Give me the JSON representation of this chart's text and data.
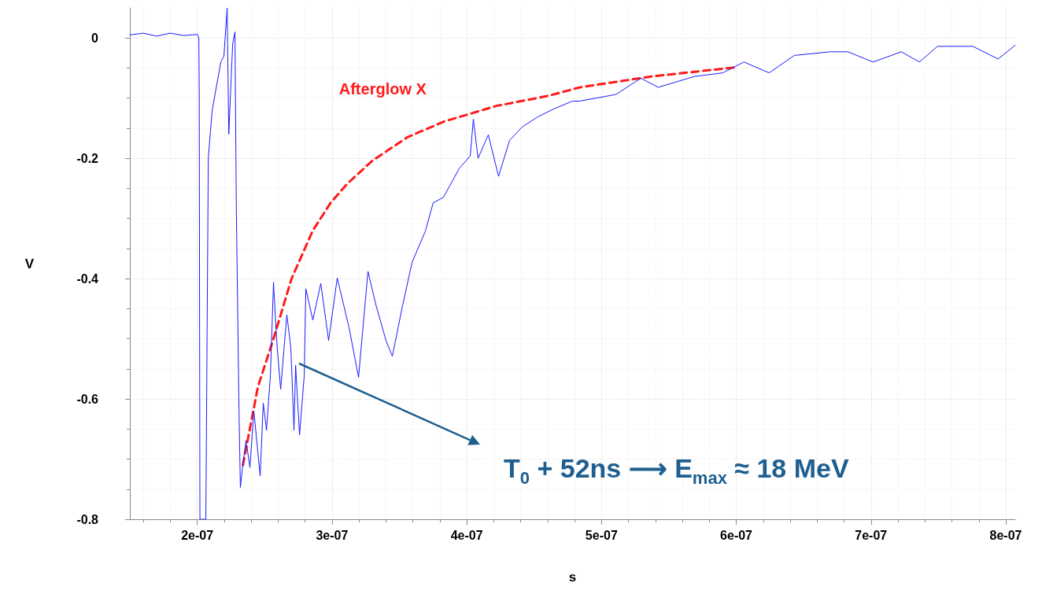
{
  "chart_data": {
    "type": "line",
    "xlabel": "s",
    "ylabel": "V",
    "xlim": [
      1.5e-07,
      8.07e-07
    ],
    "ylim": [
      -0.8,
      0.05
    ],
    "xticks": [
      {
        "value": 2e-07,
        "label": "2e-07"
      },
      {
        "value": 3e-07,
        "label": "3e-07"
      },
      {
        "value": 4e-07,
        "label": "4e-07"
      },
      {
        "value": 5e-07,
        "label": "5e-07"
      },
      {
        "value": 6e-07,
        "label": "6e-07"
      },
      {
        "value": 7e-07,
        "label": "7e-07"
      },
      {
        "value": 8e-07,
        "label": "8e-07"
      }
    ],
    "yticks": [
      0,
      -0.2,
      -0.4,
      -0.6,
      -0.8
    ],
    "grid": true,
    "marker": "none",
    "legend": false,
    "annotations": [
      "T$_{0}$ + 52ns ⟶ E$_{max}$ ≈ 18 MeV"
    ],
    "series": [
      {
        "color": "#1a1aff",
        "line_style": "solid",
        "x": [
          1.5e-07,
          1.6e-07,
          1.7e-07,
          1.8e-07,
          1.9e-07,
          2e-07,
          2.012e-07,
          2.015e-07,
          2.02e-07,
          2.064e-07,
          2.082e-07,
          2.111e-07,
          2.175e-07,
          2.198e-07,
          2.222e-07,
          2.234e-07,
          2.263e-07,
          2.28e-07,
          2.29e-07,
          2.31e-07,
          2.32e-07,
          2.339e-07,
          2.362e-07,
          2.391e-07,
          2.42e-07,
          2.467e-07,
          2.49e-07,
          2.514e-07,
          2.543e-07,
          2.566e-07,
          2.59e-07,
          2.619e-07,
          2.665e-07,
          2.695e-07,
          2.718e-07,
          2.73e-07,
          2.759e-07,
          2.794e-07,
          2.806e-07,
          2.858e-07,
          2.917e-07,
          2.975e-07,
          3.039e-07,
          3.127e-07,
          3.197e-07,
          3.267e-07,
          3.325e-07,
          3.401e-07,
          3.448e-07,
          3.518e-07,
          3.594e-07,
          3.693e-07,
          3.751e-07,
          3.827e-07,
          3.944e-07,
          4.026e-07,
          4.049e-07,
          4.084e-07,
          4.16e-07,
          4.236e-07,
          4.318e-07,
          4.411e-07,
          4.528e-07,
          4.645e-07,
          4.785e-07,
          4.837e-07,
          5.106e-07,
          5.292e-07,
          5.421e-07,
          5.689e-07,
          5.9e-07,
          6.057e-07,
          6.244e-07,
          6.431e-07,
          6.699e-07,
          6.828e-07,
          7.015e-07,
          7.225e-07,
          7.359e-07,
          7.493e-07,
          7.756e-07,
          7.943e-07,
          8.07e-07
        ],
        "values": [
          0.005,
          0.008,
          0.003,
          0.008,
          0.004,
          0.006,
          0.0,
          -0.094,
          -0.8,
          -0.8,
          -0.2,
          -0.12,
          -0.04,
          -0.03,
          0.05,
          -0.16,
          -0.01,
          0.01,
          -0.28,
          -0.62,
          -0.747,
          -0.708,
          -0.669,
          -0.714,
          -0.62,
          -0.728,
          -0.607,
          -0.652,
          -0.56,
          -0.406,
          -0.505,
          -0.584,
          -0.46,
          -0.516,
          -0.652,
          -0.544,
          -0.66,
          -0.561,
          -0.417,
          -0.469,
          -0.408,
          -0.503,
          -0.399,
          -0.482,
          -0.564,
          -0.388,
          -0.443,
          -0.503,
          -0.529,
          -0.451,
          -0.373,
          -0.321,
          -0.274,
          -0.265,
          -0.217,
          -0.196,
          -0.135,
          -0.2,
          -0.161,
          -0.23,
          -0.17,
          -0.148,
          -0.131,
          -0.118,
          -0.105,
          -0.105,
          -0.094,
          -0.067,
          -0.082,
          -0.064,
          -0.058,
          -0.04,
          -0.058,
          -0.029,
          -0.023,
          -0.023,
          -0.04,
          -0.023,
          -0.04,
          -0.014,
          -0.014,
          -0.035,
          -0.012
        ]
      },
      {
        "name": "Afterglow X",
        "color": "#ff1a1a",
        "line_style": "dashed",
        "x": [
          2.339e-07,
          2.45e-07,
          2.566e-07,
          2.7e-07,
          2.858e-07,
          2.99e-07,
          3.11e-07,
          3.3e-07,
          3.56e-07,
          3.83e-07,
          4.22e-07,
          4.61e-07,
          4.84e-07,
          5.37e-07,
          5.99e-07
        ],
        "values": [
          -0.71,
          -0.58,
          -0.5,
          -0.4,
          -0.32,
          -0.274,
          -0.243,
          -0.204,
          -0.165,
          -0.139,
          -0.113,
          -0.096,
          -0.082,
          -0.064,
          -0.049
        ]
      }
    ]
  }
}
